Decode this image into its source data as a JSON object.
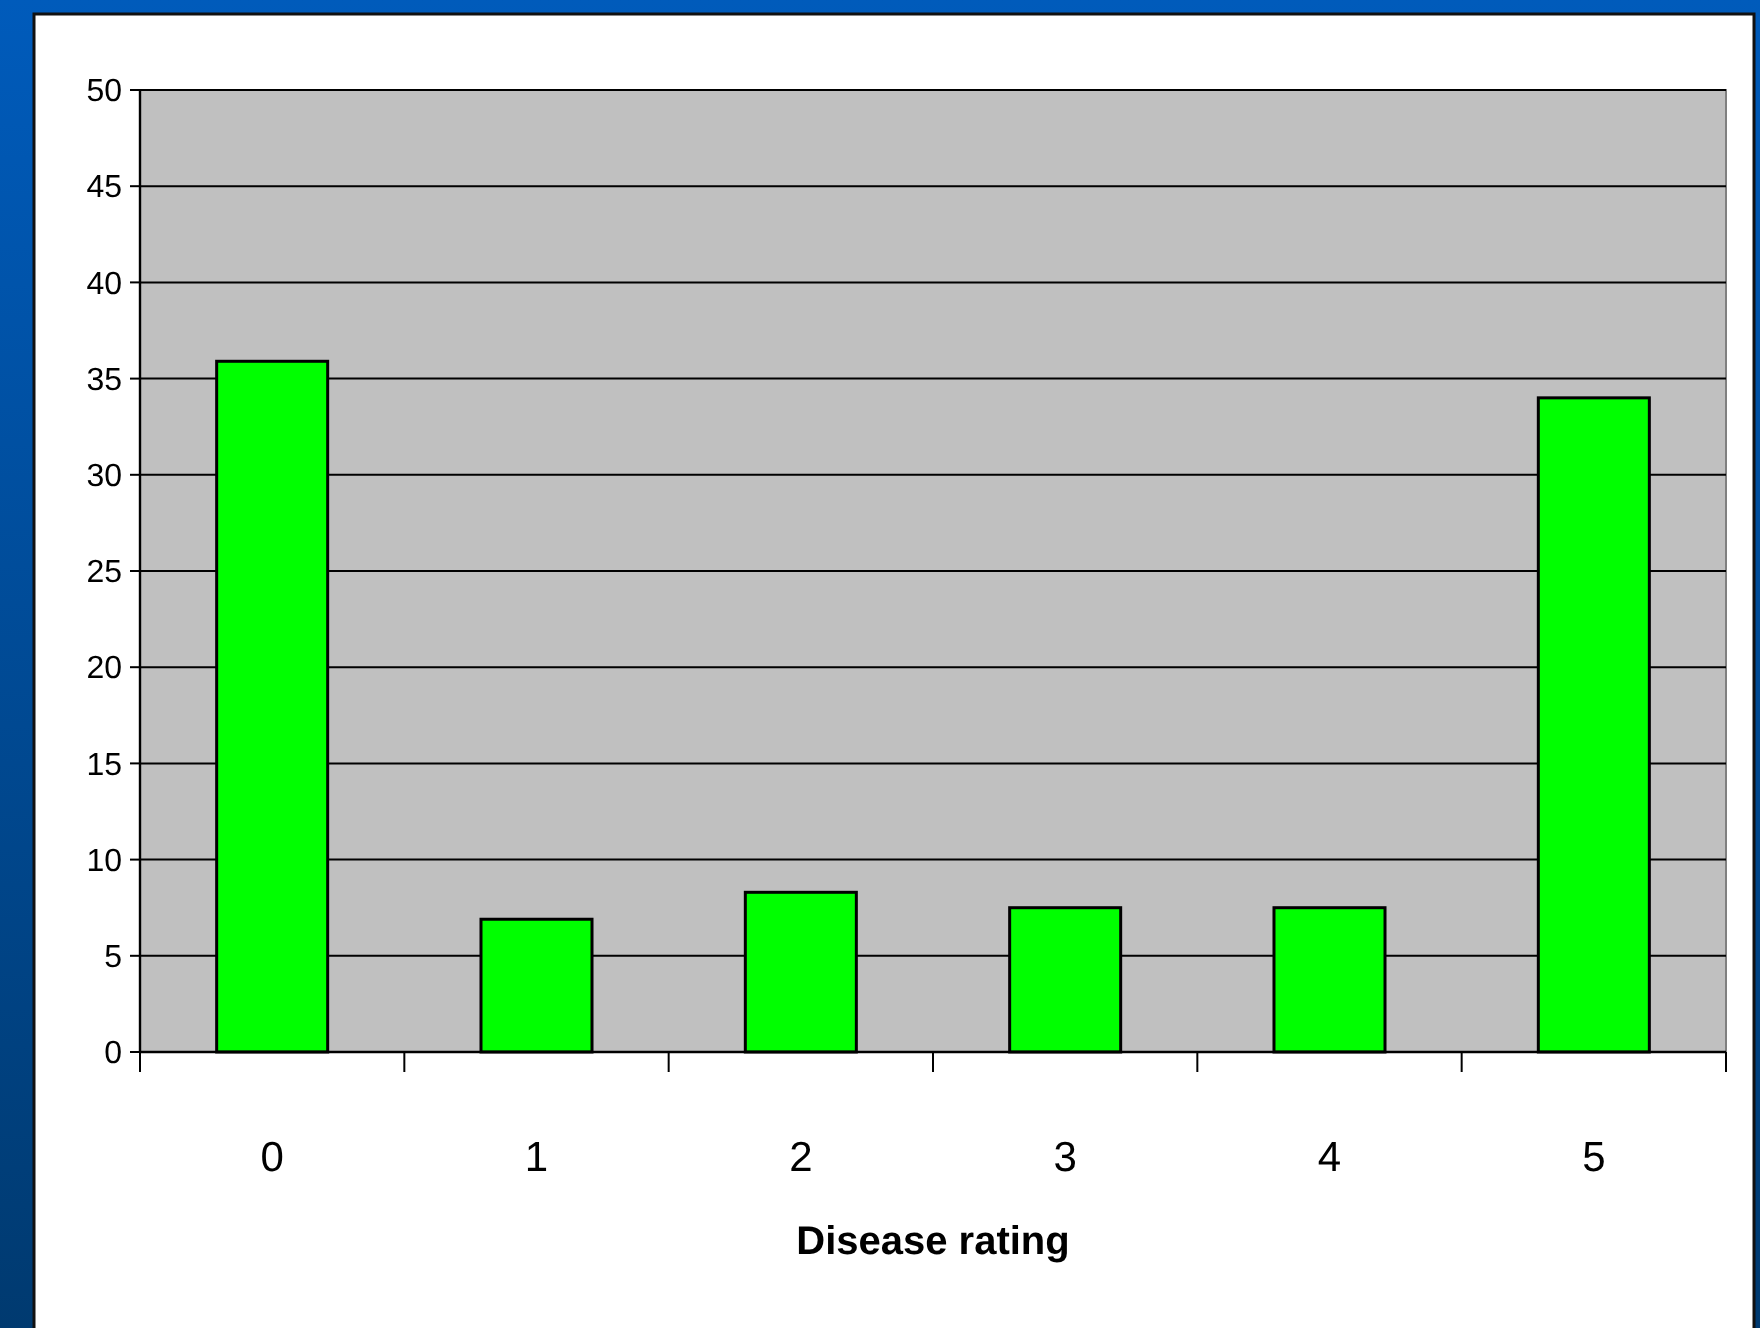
{
  "chart_data": {
    "type": "bar",
    "categories": [
      "0",
      "1",
      "2",
      "3",
      "4",
      "5"
    ],
    "values": [
      35.9,
      6.9,
      8.3,
      7.5,
      7.5,
      34.0
    ],
    "color": "#00ff00",
    "ylim": [
      0,
      50
    ],
    "yticks": [
      0,
      5,
      10,
      15,
      20,
      25,
      30,
      35,
      40,
      45,
      50
    ],
    "xlabel": "Disease rating",
    "grid": "y"
  }
}
